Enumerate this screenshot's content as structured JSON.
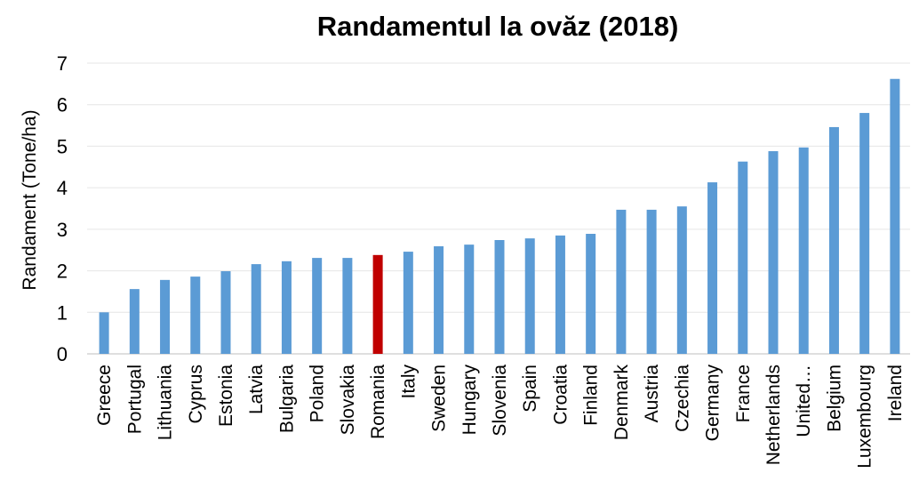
{
  "chart_data": {
    "type": "bar",
    "title": "Randamentul la ovăz (2018)",
    "y_label": "Randament  (Tone/ha)",
    "categories": [
      "Greece",
      "Portugal",
      "Lithuania",
      "Cyprus",
      "Estonia",
      "Latvia",
      "Bulgaria",
      "Poland",
      "Slovakia",
      "Romania",
      "Italy",
      "Sweden",
      "Hungary",
      "Slovenia",
      "Spain",
      "Croatia",
      "Finland",
      "Denmark",
      "Austria",
      "Czechia",
      "Germany",
      "France",
      "Netherlands",
      "United…",
      "Belgium",
      "Luxembourg",
      "Ireland"
    ],
    "values": [
      1.0,
      1.56,
      1.78,
      1.86,
      1.99,
      2.16,
      2.23,
      2.31,
      2.31,
      2.38,
      2.46,
      2.59,
      2.63,
      2.74,
      2.78,
      2.85,
      2.89,
      3.47,
      3.47,
      3.55,
      4.13,
      4.63,
      4.88,
      4.97,
      5.46,
      5.8,
      6.62
    ],
    "colors": [
      "#5b9bd5",
      "#5b9bd5",
      "#5b9bd5",
      "#5b9bd5",
      "#5b9bd5",
      "#5b9bd5",
      "#5b9bd5",
      "#5b9bd5",
      "#5b9bd5",
      "#c00000",
      "#5b9bd5",
      "#5b9bd5",
      "#5b9bd5",
      "#5b9bd5",
      "#5b9bd5",
      "#5b9bd5",
      "#5b9bd5",
      "#5b9bd5",
      "#5b9bd5",
      "#5b9bd5",
      "#5b9bd5",
      "#5b9bd5",
      "#5b9bd5",
      "#5b9bd5",
      "#5b9bd5",
      "#5b9bd5",
      "#5b9bd5"
    ],
    "ylim": [
      0,
      7
    ],
    "yticks": [
      0,
      1,
      2,
      3,
      4,
      5,
      6,
      7
    ],
    "grid": true
  }
}
